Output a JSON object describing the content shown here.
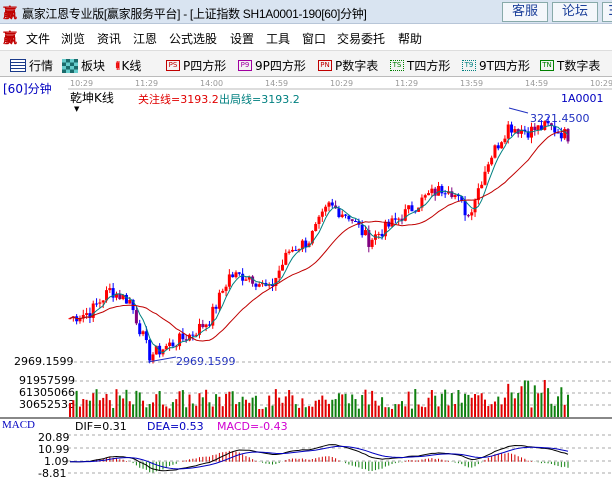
{
  "window": {
    "title": "赢家江恩专业版[赢家服务平台] - [上证指数  SH1A0001-190[60]分钟]",
    "logo": "赢",
    "buttons": [
      "客服",
      "论坛",
      "Ξ"
    ]
  },
  "menu": {
    "logo": "赢",
    "items": [
      "文件",
      "浏览",
      "资讯",
      "江恩",
      "公式选股",
      "设置",
      "工具",
      "窗口",
      "交易委托",
      "帮助"
    ]
  },
  "toolbar": {
    "items": [
      {
        "icon": "table-icon",
        "label": "行情"
      },
      {
        "icon": "blocks-icon",
        "label": "板块"
      },
      {
        "icon": "candle-icon",
        "label": "K线"
      },
      {
        "icon": "PS",
        "label": "P四方形",
        "color": "#c00000"
      },
      {
        "icon": "P9",
        "label": "9P四方形",
        "color": "#a000a0"
      },
      {
        "icon": "PN",
        "label": "P数字表",
        "color": "#c00000"
      },
      {
        "icon": "TS",
        "label": "T四方形",
        "color": "#008000"
      },
      {
        "icon": "T9",
        "label": "9T四方形",
        "color": "#008080"
      },
      {
        "icon": "TN",
        "label": "T数字表",
        "color": "#008000"
      }
    ]
  },
  "chart": {
    "period": "[60]分钟",
    "indicator": "乾坤K线",
    "focus_line": "关注线=3193.2",
    "exit_line": "出局线=3193.2",
    "code": "1A0001",
    "time_ticks": [
      "10:29",
      "11:29",
      "14:00",
      "14:59",
      "10:29",
      "11:29",
      "13:59",
      "14:59",
      "10:29"
    ],
    "high_label": "3221.4500",
    "low_label": "2969.1599",
    "price_axis_label": "2969.1599",
    "volume_ticks": [
      "91957599",
      "61305066",
      "30652533"
    ],
    "macd": {
      "name": "MACD",
      "dif": "DIF=0.31",
      "dea": "DEA=0.53",
      "macd": "MACD=-0.43",
      "ticks": [
        "20.89",
        "10.99",
        "1.09",
        "-8.81"
      ]
    },
    "colors": {
      "up": "#ff0000",
      "down": "#0000ff",
      "vol_up": "#e00000",
      "vol_down": "#108010",
      "ma_fast": "#008080",
      "ma_slow": "#c00000"
    }
  },
  "chart_data": {
    "type": "candlestick",
    "key_closes": [
      3015,
      3021,
      3044,
      3033,
      2976,
      2987,
      2997,
      3013,
      3059,
      3059,
      3044,
      3085,
      3096,
      3132,
      3122,
      3096,
      3111,
      3127,
      3143,
      3153,
      3122,
      3179,
      3215,
      3210,
      3215,
      3205
    ],
    "price_range": [
      2969.1599,
      3221.45
    ],
    "volume_range": [
      0,
      122610132
    ],
    "macd_range": [
      -8.81,
      20.89
    ]
  }
}
